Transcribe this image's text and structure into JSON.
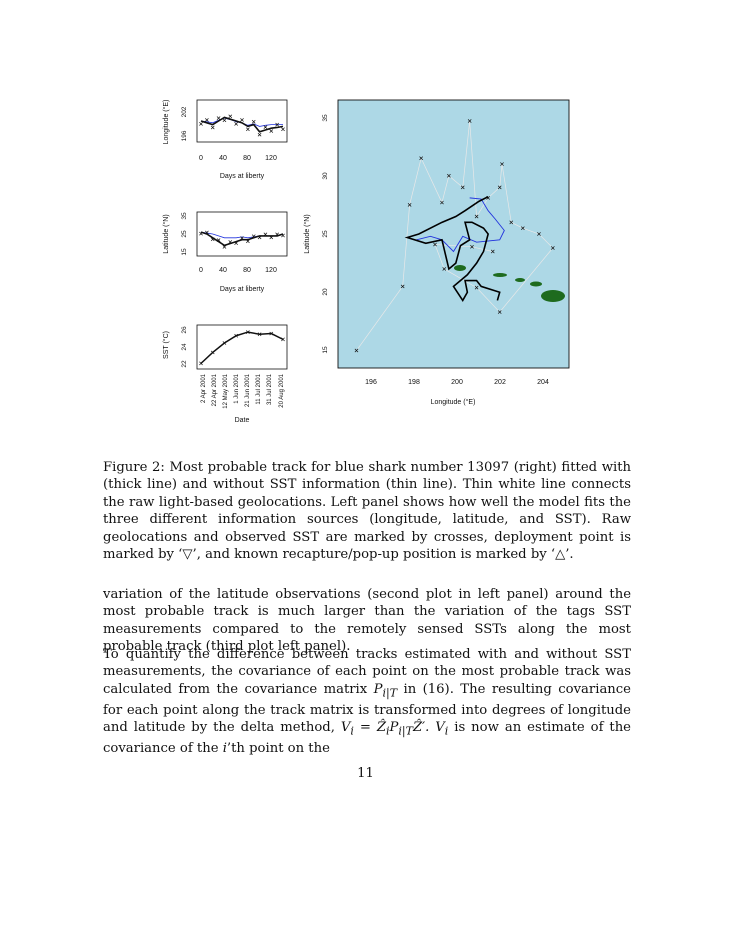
{
  "figure": {
    "panel_longitude": {
      "ylabel": "Longitude (°E)",
      "xlabel": "Days at liberty",
      "yticks": [
        "196",
        "202"
      ],
      "xticks": [
        "0",
        "40",
        "80",
        "120"
      ]
    },
    "panel_latitude": {
      "ylabel": "Latitude (°N)",
      "xlabel": "Days at liberty",
      "yticks": [
        "15",
        "25",
        "35"
      ],
      "xticks": [
        "0",
        "40",
        "80",
        "120"
      ]
    },
    "panel_sst": {
      "ylabel": "SST (°C)",
      "xlabel": "Date",
      "yticks": [
        "22",
        "24",
        "26"
      ],
      "xticks": [
        "2 Apr 2001",
        "22 Apr 2001",
        "12 May 2001",
        "1 Jun 2001",
        "21 Jun 2001",
        "11 Jul 2001",
        "31 Jul 2001",
        "20 Aug 2001"
      ]
    },
    "map": {
      "xlabel": "Longitude (°E)",
      "ylabel": "Latitude (°N)",
      "xticks": [
        "196",
        "198",
        "200",
        "202",
        "204"
      ],
      "yticks": [
        "15",
        "20",
        "25",
        "30",
        "35"
      ],
      "ocean_color": "#add8e6",
      "land_color": "#1e6b1e",
      "track_sst_color": "#000000",
      "track_nosst_color": "#2233dd",
      "raw_line_color": "#e8e8e8"
    }
  },
  "chart_data": [
    {
      "type": "line",
      "title": "",
      "xlabel": "Days at liberty",
      "ylabel": "Longitude (°E)",
      "xlim": [
        0,
        140
      ],
      "ylim": [
        195,
        205
      ],
      "x": [
        0,
        10,
        20,
        30,
        40,
        50,
        60,
        70,
        80,
        90,
        100,
        110,
        120,
        130,
        140
      ],
      "series": [
        {
          "values": [
            200,
            199.5,
            199,
            200,
            201,
            200.5,
            200,
            199.5,
            198.5,
            199,
            197,
            197.5,
            198,
            198.2,
            198.5
          ]
        },
        {
          "values": [
            200,
            199.8,
            199.5,
            200.2,
            200.8,
            200.4,
            199.8,
            199.5,
            198.8,
            199.2,
            198.5,
            198.8,
            199,
            199,
            199
          ]
        }
      ]
    },
    {
      "type": "line",
      "title": "",
      "xlabel": "Days at liberty",
      "ylabel": "Latitude (°N)",
      "xlim": [
        0,
        140
      ],
      "ylim": [
        15,
        35
      ],
      "x": [
        0,
        10,
        20,
        30,
        40,
        50,
        60,
        70,
        80,
        90,
        100,
        110,
        120,
        130,
        140
      ],
      "series": [
        {
          "values": [
            26,
            25,
            23,
            21,
            19,
            20,
            21,
            22,
            22,
            23,
            24,
            24,
            24,
            24,
            25
          ]
        },
        {
          "values": [
            26,
            25.5,
            25,
            24,
            23,
            23,
            23,
            23.5,
            23,
            23.5,
            24,
            24,
            24,
            24,
            25
          ]
        }
      ]
    },
    {
      "type": "line",
      "title": "",
      "xlabel": "Date",
      "ylabel": "SST (°C)",
      "ylim": [
        21.5,
        27
      ],
      "x": [
        "2 Apr 2001",
        "22 Apr 2001",
        "12 May 2001",
        "1 Jun 2001",
        "21 Jun 2001",
        "11 Jul 2001",
        "31 Jul 2001",
        "20 Aug 2001"
      ],
      "series": [
        {
          "values": [
            22,
            23.5,
            24.8,
            25.8,
            26.3,
            26,
            26.1,
            25.3
          ]
        }
      ]
    },
    {
      "type": "line",
      "title": "",
      "xlabel": "Longitude (°E)",
      "ylabel": "Latitude (°N)",
      "xlim": [
        195,
        205
      ],
      "ylim": [
        14,
        37
      ],
      "series": [
        {
          "x": [
            201.9,
            202.0,
            201.2,
            201.0,
            200.5,
            200.6,
            200.4,
            200.0,
            200.6,
            201.0,
            201.3,
            201.5,
            201.3,
            200.8,
            200.5,
            200.7,
            200.3,
            200.1,
            199.8,
            199.5,
            198.8,
            198.0,
            198.5,
            199.5,
            200.1,
            200.5,
            201.1,
            201.5
          ],
          "y": [
            19.8,
            20.5,
            21.0,
            21.5,
            21.5,
            20.5,
            19.8,
            21.0,
            22.0,
            23.0,
            24.0,
            25.5,
            26.0,
            26.5,
            26.5,
            25.0,
            24.5,
            23.0,
            22.5,
            25.0,
            24.7,
            25.2,
            25.5,
            26.5,
            27.0,
            27.5,
            28.3,
            28.7
          ]
        },
        {
          "x": [
            200.7,
            201.2,
            201.5,
            201.8,
            202.2,
            202.0,
            201.0,
            200.4,
            200.0,
            199.5,
            199.0,
            198.4
          ],
          "y": [
            28.6,
            28.5,
            27.5,
            26.8,
            25.8,
            25.0,
            24.8,
            25.3,
            24.0,
            25.0,
            25.3,
            25.0
          ]
        }
      ]
    }
  ],
  "caption": "Figure 2: Most probable track for blue shark number 13097 (right) fitted with (thick line) and without SST information (thin line). Thin white line connects the raw light-based geolocations. Left panel shows how well the model fits the three different information sources (longitude, latitude, and SST). Raw geolocations and observed SST are marked by crosses, deployment point is marked by ‘▽’, and known recapture/pop-up position is marked by ‘△’.",
  "paragraph1": "variation of the latitude observations (second plot in left panel) around the most probable track is much larger than the variation of the tags SST measurements compared to the remotely sensed SSTs along the most probable track (third plot left panel).",
  "paragraph2": {
    "part1": "To quantify the difference between tracks estimated with and without SST measurements, the covariance of each point on the most probable track was calculated from the covariance matrix ",
    "matrix": "P",
    "matrix_sub": "i|T",
    "part2": " in (16). The resulting covariance for each point along the track matrix is transformed into degrees of longitude and latitude by the delta method, ",
    "formula": "V",
    "formula_sub": "i",
    "formula_rest": " = Ẑ",
    "formula_rest_sub": "i",
    "formula_p": "P",
    "formula_p_sub": "i|T",
    "formula_end": "Ẑ′.",
    "part3": " V",
    "part3_sub": "i",
    "part4": " is now an estimate of the covariance of the ",
    "ith": "i",
    "part5": "’th point on the"
  },
  "page_number": "11"
}
